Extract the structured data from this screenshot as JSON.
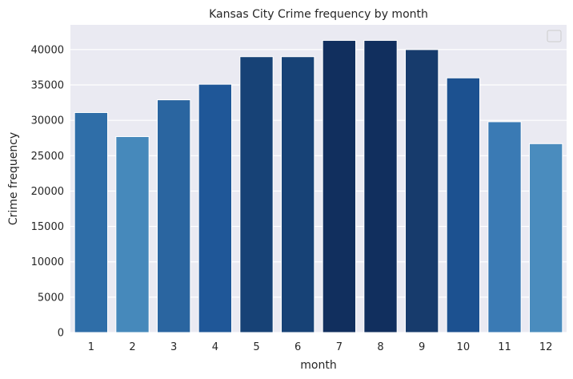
{
  "chart_data": {
    "type": "bar",
    "title": "Kansas City Crime frequency by month",
    "xlabel": "month",
    "ylabel": "Crime frequency",
    "categories": [
      "1",
      "2",
      "3",
      "4",
      "5",
      "6",
      "7",
      "8",
      "9",
      "10",
      "11",
      "12"
    ],
    "values": [
      31100,
      27700,
      32900,
      35100,
      39000,
      39000,
      41300,
      41300,
      40000,
      36000,
      29800,
      26700
    ],
    "bar_colors": [
      "#2f6ea8",
      "#4689bb",
      "#2a65a0",
      "#1f5798",
      "#174276",
      "#174276",
      "#112f5e",
      "#112f5e",
      "#173b6c",
      "#1c5190",
      "#3a7ab4",
      "#4a8cbe"
    ],
    "ylim": [
      0,
      43500
    ],
    "yticks": [
      0,
      5000,
      10000,
      15000,
      20000,
      25000,
      30000,
      35000,
      40000
    ],
    "grid": true,
    "background": "#eaeaf2",
    "legend": "top-right (empty)"
  }
}
